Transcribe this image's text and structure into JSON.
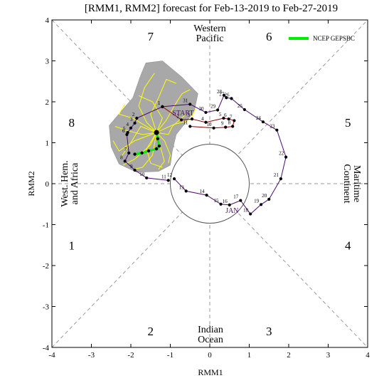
{
  "colors": {
    "observed": "#4b0a6e",
    "recent": "#8b0000",
    "ensemble": "#ffff00",
    "plume": "#a8a8a8",
    "mean": "#00ee00",
    "dashed": "#999999"
  },
  "chart_data": {
    "type": "phase-diagram",
    "title": "[RMM1, RMM2] forecast for Feb-13-2019 to Feb-27-2019",
    "xlabel": "RMM1",
    "ylabel": "RMM2",
    "xlim": [
      -4,
      4
    ],
    "ylim": [
      -4,
      4
    ],
    "ticks": [
      "-4",
      "-3",
      "-2",
      "-1",
      "0",
      "1",
      "2",
      "3",
      "4"
    ],
    "unit_circle_radius": 1,
    "phase_numbers": [
      {
        "label": "1",
        "x": -3.5,
        "y": -1.5
      },
      {
        "label": "2",
        "x": -1.5,
        "y": -3.6
      },
      {
        "label": "3",
        "x": 1.5,
        "y": -3.6
      },
      {
        "label": "4",
        "x": 3.5,
        "y": -1.5
      },
      {
        "label": "5",
        "x": 3.5,
        "y": 1.5
      },
      {
        "label": "6",
        "x": 1.5,
        "y": 3.6
      },
      {
        "label": "7",
        "x": -1.5,
        "y": 3.6
      },
      {
        "label": "8",
        "x": -3.5,
        "y": 1.5
      }
    ],
    "region_labels": {
      "top": [
        "Western",
        "Pacific"
      ],
      "bottom": [
        "Indian",
        "Ocean"
      ],
      "left": [
        "West. Hem.",
        "and Africa"
      ],
      "right": [
        "Maritime",
        "Continent"
      ]
    },
    "legend": {
      "label": "NCEP GEPSBC",
      "position": "top-right"
    },
    "annotations": [
      {
        "text": "START",
        "x": -0.95,
        "y": 1.67
      },
      {
        "text": "JAN",
        "x": 0.4,
        "y": -0.71
      }
    ],
    "observed": [
      {
        "label": "12",
        "x": -0.9,
        "y": 0.12
      },
      {
        "label": "13",
        "x": -0.6,
        "y": -0.18
      },
      {
        "label": "14",
        "x": -0.08,
        "y": -0.28
      },
      {
        "label": "15",
        "x": 0.28,
        "y": -0.5
      },
      {
        "label": "16",
        "x": 0.5,
        "y": -0.52
      },
      {
        "label": "17",
        "x": 0.78,
        "y": -0.41
      },
      {
        "label": "18",
        "x": 1.03,
        "y": -0.74
      },
      {
        "label": "19",
        "x": 1.3,
        "y": -0.51
      },
      {
        "label": "20",
        "x": 1.5,
        "y": -0.38
      },
      {
        "label": "21",
        "x": 1.8,
        "y": 0.12
      },
      {
        "label": "22",
        "x": 1.93,
        "y": 0.65
      },
      {
        "label": "23",
        "x": 1.7,
        "y": 1.31
      },
      {
        "label": "24",
        "x": 1.35,
        "y": 1.51
      },
      {
        "label": "25",
        "x": 0.88,
        "y": 1.81
      },
      {
        "label": "26",
        "x": 0.55,
        "y": 2.08
      },
      {
        "label": "27",
        "x": 0.42,
        "y": 2.1
      },
      {
        "label": "28",
        "x": 0.36,
        "y": 2.16
      },
      {
        "label": "29",
        "x": 0.2,
        "y": 1.8
      },
      {
        "label": "30",
        "x": -0.1,
        "y": 1.74
      },
      {
        "label": "31",
        "x": -0.5,
        "y": 1.94
      },
      {
        "label": "1",
        "x": -1.2,
        "y": 1.88
      },
      {
        "label": "2",
        "x": -1.85,
        "y": 1.6
      },
      {
        "label": "3",
        "x": -1.9,
        "y": 1.48
      },
      {
        "label": "4",
        "x": -2.0,
        "y": 1.36
      },
      {
        "label": "5",
        "x": -2.08,
        "y": 1.25
      },
      {
        "label": "6",
        "x": -2.1,
        "y": 1.2
      },
      {
        "label": "7",
        "x": -2.05,
        "y": 0.75
      },
      {
        "label": "8",
        "x": -2.15,
        "y": 0.55
      },
      {
        "label": "9",
        "x": -1.9,
        "y": 0.33
      },
      {
        "label": "10",
        "x": -1.6,
        "y": 0.14
      },
      {
        "label": "11",
        "x": -1.05,
        "y": 0.08
      }
    ],
    "recent": [
      {
        "label": "1",
        "x": -1.2,
        "y": 1.88
      },
      {
        "label": "2",
        "x": -0.72,
        "y": 1.56
      },
      {
        "label": "3",
        "x": -0.45,
        "y": 1.58
      },
      {
        "label": "4",
        "x": -0.1,
        "y": 1.5
      },
      {
        "label": "5",
        "x": 0.35,
        "y": 1.6
      },
      {
        "label": "6",
        "x": 0.48,
        "y": 1.58
      },
      {
        "label": "7",
        "x": 0.62,
        "y": 1.54
      },
      {
        "label": "8",
        "x": 0.58,
        "y": 1.4
      },
      {
        "label": "9",
        "x": 0.4,
        "y": 1.38
      },
      {
        "label": "10",
        "x": 0.1,
        "y": 1.36
      },
      {
        "label": "11",
        "x": -0.5,
        "y": 1.4
      }
    ],
    "ensemble_mean": [
      {
        "x": -1.35,
        "y": 1.25
      },
      {
        "x": -1.32,
        "y": 1.1
      },
      {
        "x": -1.28,
        "y": 0.92
      },
      {
        "x": -1.35,
        "y": 0.85
      },
      {
        "x": -1.55,
        "y": 0.8
      },
      {
        "x": -1.72,
        "y": 0.75
      },
      {
        "x": -1.9,
        "y": 0.72
      }
    ],
    "plume_outline": [
      {
        "x": -2.55,
        "y": 1.42
      },
      {
        "x": -2.2,
        "y": 1.82
      },
      {
        "x": -1.95,
        "y": 2.1
      },
      {
        "x": -1.75,
        "y": 2.65
      },
      {
        "x": -1.62,
        "y": 2.95
      },
      {
        "x": -1.2,
        "y": 3.0
      },
      {
        "x": -0.7,
        "y": 2.6
      },
      {
        "x": -0.3,
        "y": 2.2
      },
      {
        "x": -0.4,
        "y": 1.75
      },
      {
        "x": -0.85,
        "y": 1.2
      },
      {
        "x": -0.95,
        "y": 0.8
      },
      {
        "x": -1.0,
        "y": 0.45
      },
      {
        "x": -1.3,
        "y": 0.3
      },
      {
        "x": -1.85,
        "y": 0.28
      },
      {
        "x": -2.3,
        "y": 0.48
      },
      {
        "x": -2.5,
        "y": 0.9
      }
    ],
    "ensemble_members": [
      [
        {
          "x": -1.35,
          "y": 1.25
        },
        {
          "x": -1.6,
          "y": 1.5
        },
        {
          "x": -1.8,
          "y": 1.9
        },
        {
          "x": -1.65,
          "y": 2.35
        },
        {
          "x": -1.4,
          "y": 2.7
        }
      ],
      [
        {
          "x": -1.35,
          "y": 1.25
        },
        {
          "x": -1.1,
          "y": 1.55
        },
        {
          "x": -0.9,
          "y": 1.9
        },
        {
          "x": -0.7,
          "y": 2.2
        },
        {
          "x": -0.5,
          "y": 2.3
        }
      ],
      [
        {
          "x": -1.35,
          "y": 1.25
        },
        {
          "x": -1.7,
          "y": 1.2
        },
        {
          "x": -2.1,
          "y": 1.3
        },
        {
          "x": -2.4,
          "y": 1.4
        }
      ],
      [
        {
          "x": -1.35,
          "y": 1.25
        },
        {
          "x": -1.5,
          "y": 0.95
        },
        {
          "x": -1.9,
          "y": 0.6
        },
        {
          "x": -2.2,
          "y": 0.45
        }
      ],
      [
        {
          "x": -1.35,
          "y": 1.25
        },
        {
          "x": -1.25,
          "y": 0.9
        },
        {
          "x": -1.15,
          "y": 0.55
        },
        {
          "x": -1.3,
          "y": 0.35
        }
      ],
      [
        {
          "x": -1.35,
          "y": 1.25
        },
        {
          "x": -1.05,
          "y": 1.2
        },
        {
          "x": -0.95,
          "y": 1.4
        },
        {
          "x": -0.6,
          "y": 1.7
        }
      ],
      [
        {
          "x": -1.35,
          "y": 1.25
        },
        {
          "x": -1.95,
          "y": 1.6
        },
        {
          "x": -2.3,
          "y": 1.7
        },
        {
          "x": -2.15,
          "y": 1.95
        }
      ],
      [
        {
          "x": -1.35,
          "y": 1.25
        },
        {
          "x": -1.5,
          "y": 1.7
        },
        {
          "x": -1.3,
          "y": 2.1
        },
        {
          "x": -1.1,
          "y": 2.55
        },
        {
          "x": -0.85,
          "y": 2.45
        }
      ],
      [
        {
          "x": -1.35,
          "y": 1.25
        },
        {
          "x": -1.9,
          "y": 1.05
        },
        {
          "x": -2.3,
          "y": 0.8
        },
        {
          "x": -2.45,
          "y": 1.05
        }
      ],
      [
        {
          "x": -1.35,
          "y": 1.25
        },
        {
          "x": -1.45,
          "y": 0.7
        },
        {
          "x": -1.7,
          "y": 0.4
        },
        {
          "x": -1.95,
          "y": 0.35
        }
      ],
      [
        {
          "x": -1.35,
          "y": 1.25
        },
        {
          "x": -1.15,
          "y": 1.05
        },
        {
          "x": -1.0,
          "y": 0.7
        },
        {
          "x": -1.05,
          "y": 0.5
        }
      ],
      [
        {
          "x": -1.35,
          "y": 1.25
        },
        {
          "x": -1.75,
          "y": 1.4
        },
        {
          "x": -2.0,
          "y": 1.0
        },
        {
          "x": -2.25,
          "y": 0.65
        }
      ],
      [
        {
          "x": -1.35,
          "y": 1.25
        },
        {
          "x": -1.2,
          "y": 1.6
        },
        {
          "x": -1.45,
          "y": 2.0
        },
        {
          "x": -1.8,
          "y": 2.15
        }
      ],
      [
        {
          "x": -1.35,
          "y": 1.25
        },
        {
          "x": -0.9,
          "y": 1.45
        },
        {
          "x": -0.5,
          "y": 1.55
        },
        {
          "x": -0.35,
          "y": 1.85
        }
      ],
      [
        {
          "x": -1.35,
          "y": 1.25
        },
        {
          "x": -1.6,
          "y": 0.85
        },
        {
          "x": -1.5,
          "y": 0.5
        },
        {
          "x": -1.2,
          "y": 0.4
        }
      ]
    ]
  }
}
